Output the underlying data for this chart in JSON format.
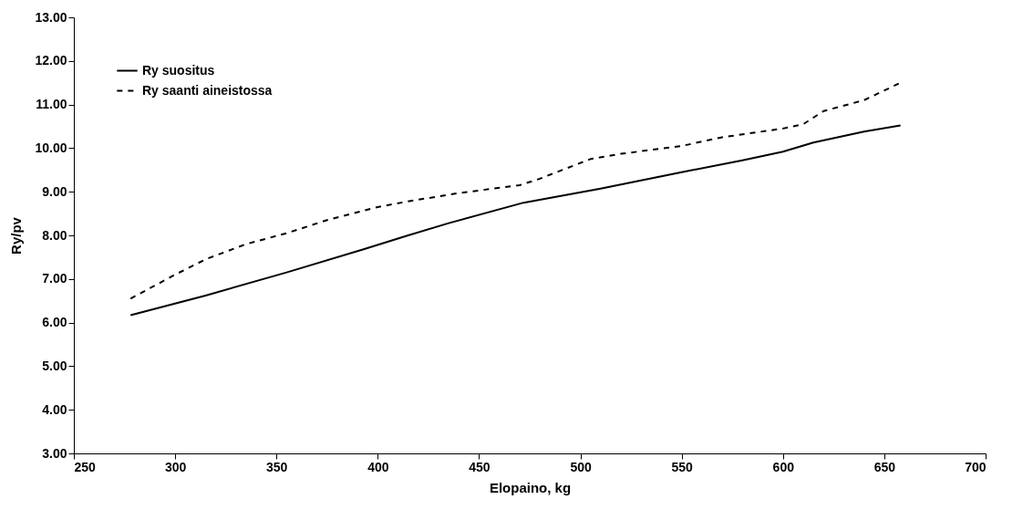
{
  "chart_data": {
    "type": "line",
    "xlabel": "Elopaino, kg",
    "ylabel": "Ry/pv",
    "xlim": [
      250,
      700
    ],
    "xticks": [
      250,
      300,
      350,
      400,
      450,
      500,
      550,
      600,
      650,
      700
    ],
    "ylim": [
      3,
      13
    ],
    "yticks": [
      {
        "value": 3,
        "label": "3.00"
      },
      {
        "value": 4,
        "label": "4.00"
      },
      {
        "value": 5,
        "label": "5.00"
      },
      {
        "value": 6,
        "label": "6.00"
      },
      {
        "value": 7,
        "label": "7.00"
      },
      {
        "value": 8,
        "label": "8.00"
      },
      {
        "value": 9,
        "label": "9.00"
      },
      {
        "value": 10,
        "label": "10.00"
      },
      {
        "value": 11,
        "label": "11.00"
      },
      {
        "value": 12,
        "label": "12.00"
      },
      {
        "value": 13,
        "label": "13.00"
      }
    ],
    "grid": false,
    "legend": "top left",
    "marker": "none",
    "series": [
      {
        "name": "Ry suositus",
        "color": "#000000",
        "line_style": "solid",
        "x": [
          278,
          315,
          355,
          393,
          415,
          435,
          472,
          510,
          550,
          580,
          600,
          615,
          640,
          658
        ],
        "values": [
          6.17,
          6.62,
          7.15,
          7.68,
          8.0,
          8.28,
          8.75,
          9.07,
          9.45,
          9.72,
          9.92,
          10.13,
          10.38,
          10.52
        ]
      },
      {
        "name": "Ry saanti aineistossa",
        "color": "#000000",
        "line_style": "dashed",
        "x": [
          278,
          300,
          315,
          335,
          355,
          375,
          400,
          415,
          440,
          470,
          480,
          505,
          520,
          550,
          570,
          600,
          610,
          620,
          640,
          658
        ],
        "values": [
          6.55,
          7.1,
          7.45,
          7.8,
          8.05,
          8.35,
          8.65,
          8.78,
          8.97,
          9.15,
          9.3,
          9.75,
          9.87,
          10.05,
          10.25,
          10.45,
          10.55,
          10.85,
          11.1,
          11.5
        ]
      }
    ]
  }
}
